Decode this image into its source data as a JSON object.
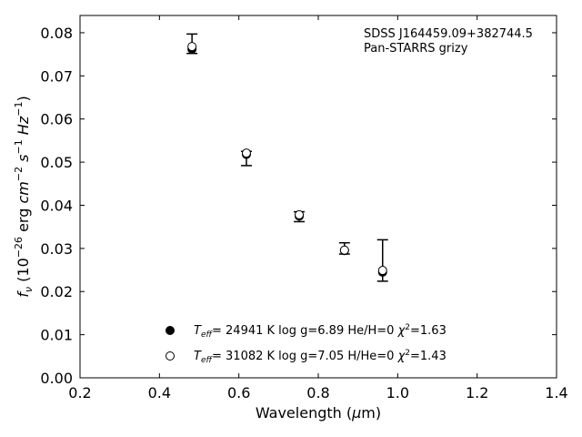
{
  "chart_data": {
    "type": "scatter",
    "xlabel_prefix": "Wavelength (",
    "xlabel_mu": "μ",
    "xlabel_suffix": "m)",
    "ylabel_f": "f",
    "ylabel_nu": "ν",
    "ylabel_units_a": " (10",
    "ylabel_exp_a": "−26",
    "ylabel_units_b": " erg ",
    "ylabel_cm": "cm",
    "ylabel_exp_b": "−2",
    "ylabel_s": " s",
    "ylabel_exp_c": "−1",
    "ylabel_hz": " Hz",
    "ylabel_exp_d": "−1",
    "ylabel_close": ")",
    "xlim": [
      0.2,
      1.4
    ],
    "ylim": [
      0.0,
      0.084
    ],
    "xticks": [
      0.2,
      0.4,
      0.6,
      0.8,
      1.0,
      1.2,
      1.4
    ],
    "xtick_labels": [
      "0.2",
      "0.4",
      "0.6",
      "0.8",
      "1.0",
      "1.2",
      "1.4"
    ],
    "yticks": [
      0.0,
      0.01,
      0.02,
      0.03,
      0.04,
      0.05,
      0.06,
      0.07,
      0.08
    ],
    "ytick_labels": [
      "0.00",
      "0.01",
      "0.02",
      "0.03",
      "0.04",
      "0.05",
      "0.06",
      "0.07",
      "0.08"
    ],
    "annotation": {
      "line1": "SDSS J164459.09+382744.5",
      "line2": "Pan-STARRS grizy"
    },
    "observed": {
      "x": [
        0.482,
        0.619,
        0.752,
        0.866,
        0.962
      ],
      "y_low": [
        0.0752,
        0.0492,
        0.0362,
        0.0287,
        0.0224
      ],
      "y_high": [
        0.0797,
        0.0525,
        0.0385,
        0.0313,
        0.032
      ]
    },
    "series": [
      {
        "name_T": "T",
        "name_eff": "eff",
        "name_rest": "= 24941 K  log g=6.89  He/H=0  ",
        "name_chi": "χ",
        "name_chi_exp": "2",
        "name_chi_val": "=1.63",
        "marker": "filled",
        "x": [
          0.482,
          0.619,
          0.752,
          0.866,
          0.962
        ],
        "y": [
          0.0762,
          0.0518,
          0.0375,
          0.0295,
          0.0245
        ]
      },
      {
        "name_T": "T",
        "name_eff": "eff",
        "name_rest": "= 31082 K  log g=7.05  H/He=0  ",
        "name_chi": "χ",
        "name_chi_exp": "2",
        "name_chi_val": "=1.43",
        "marker": "open",
        "x": [
          0.482,
          0.619,
          0.752,
          0.866,
          0.962
        ],
        "y": [
          0.0768,
          0.0521,
          0.0378,
          0.0296,
          0.0249
        ]
      }
    ],
    "grid": false,
    "legend_placement": "lower-center",
    "colors": {
      "axis": "#000000",
      "marker": "#000000",
      "background": "#ffffff"
    }
  }
}
